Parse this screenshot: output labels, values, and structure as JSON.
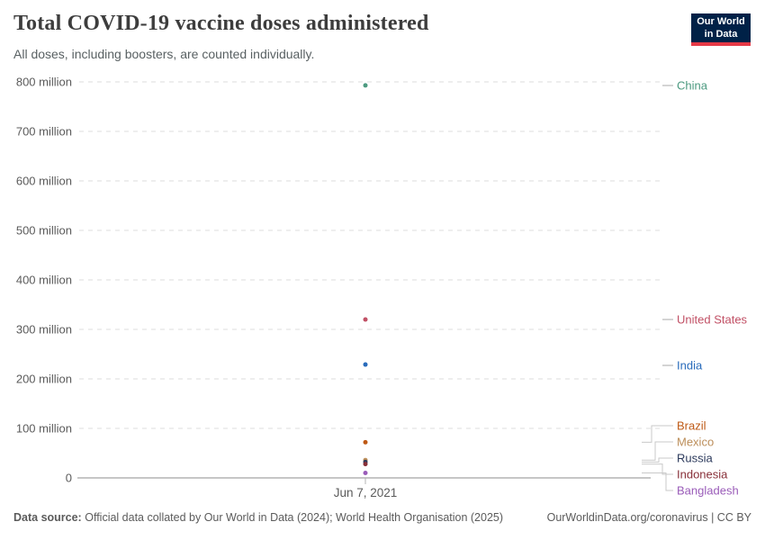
{
  "header": {
    "title": "Total COVID-19 vaccine doses administered",
    "subtitle": "All doses, including boosters, are counted individually."
  },
  "logo": {
    "line1": "Our World",
    "line2": "in Data",
    "bg": "#002147",
    "accent": "#E63946"
  },
  "chart_data": {
    "type": "scatter",
    "title": "Total COVID-19 vaccine doses administered",
    "subtitle": "All doses, including boosters, are counted individually.",
    "x_tick_label": "Jun 7, 2021",
    "ylim": [
      0,
      800
    ],
    "ytick_step_million": 100,
    "ytick_labels": [
      "0",
      "100 million",
      "200 million",
      "300 million",
      "400 million",
      "500 million",
      "600 million",
      "700 million",
      "800 million"
    ],
    "grid": "horizontal-dashed",
    "legend_position": "right-entity-labels",
    "series": [
      {
        "name": "China",
        "value_million": 793,
        "color": "#4C9A80",
        "label_y": 95,
        "connector": "dash"
      },
      {
        "name": "United States",
        "value_million": 320,
        "color": "#C15065",
        "label_y": 355,
        "connector": "dash"
      },
      {
        "name": "India",
        "value_million": 229,
        "color": "#286BBB",
        "label_y": 406,
        "connector": "dash"
      },
      {
        "name": "Brazil",
        "value_million": 72,
        "color": "#BE5915",
        "label_y": 473,
        "connector": "elbow"
      },
      {
        "name": "Mexico",
        "value_million": 36,
        "color": "#BC8E5A",
        "label_y": 491,
        "connector": "elbow"
      },
      {
        "name": "Russia",
        "value_million": 32,
        "color": "#2C3A5C",
        "label_y": 509,
        "connector": "elbow"
      },
      {
        "name": "Indonesia",
        "value_million": 28,
        "color": "#883039",
        "label_y": 527,
        "connector": "elbow"
      },
      {
        "name": "Bangladesh",
        "value_million": 10,
        "color": "#9A5CB9",
        "label_y": 545,
        "connector": "elbow"
      }
    ]
  },
  "footer": {
    "source_label": "Data source:",
    "source_text": "Official data collated by Our World in Data (2024); World Health Organisation (2025)",
    "link": "OurWorldinData.org/coronavirus | CC BY"
  }
}
